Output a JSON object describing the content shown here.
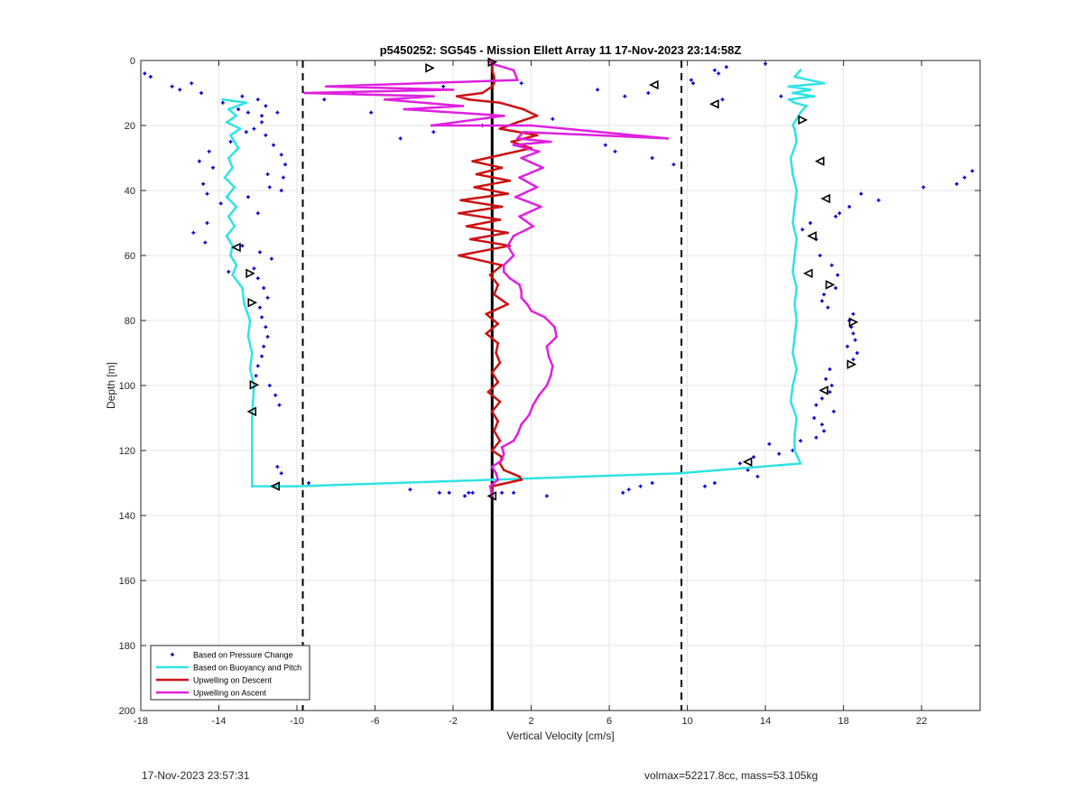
{
  "chart_data": {
    "type": "line",
    "title": "p5450252: SG545 - Mission Ellett Array 11 17-Nov-2023 23:14:58Z",
    "xlabel": "Vertical Velocity [cm/s]",
    "ylabel": "Depth [m]",
    "xlim": [
      -18,
      25
    ],
    "ylim": [
      0,
      200
    ],
    "y_reversed": true,
    "xticks": [
      -18,
      -14,
      -10,
      -6,
      -2,
      2,
      6,
      10,
      14,
      18,
      22
    ],
    "yticks": [
      0,
      20,
      40,
      60,
      80,
      100,
      120,
      140,
      160,
      180,
      200
    ],
    "grid": true,
    "legend_location": "bottom-left",
    "vertical_lines": [
      {
        "x": 0,
        "style": "solid",
        "color": "#000000"
      },
      {
        "x": -9.7,
        "style": "dashed",
        "color": "#000000"
      },
      {
        "x": 9.7,
        "style": "dashed",
        "color": "#000000"
      }
    ],
    "series": [
      {
        "name": "Based on Pressure Change",
        "kind": "scatter",
        "color": "#0000cc",
        "x": [
          -17.8,
          -17.5,
          -16.4,
          -16.0,
          -15.4,
          -14.9,
          -12.8,
          -12.0,
          -13.8,
          -13.0,
          -12.5,
          -11.8,
          -11.6,
          -11.0,
          -11.8,
          -12.6,
          -13.4,
          -14.5,
          -15.0,
          -14.3,
          -12.2,
          -11.6,
          -11.2,
          -10.8,
          -10.6,
          -11.5,
          -14.8,
          -14.6,
          -13.9,
          -12.5,
          -10.8,
          -11.4,
          -10.7,
          -12.0,
          -14.6,
          -15.3,
          -14.7,
          -12.8,
          -11.9,
          -11.3,
          -13.5,
          -12.2,
          -12.0,
          -11.7,
          -11.5,
          -11.9,
          -11.8,
          -11.6,
          -11.5,
          -11.7,
          -11.8,
          -12.0,
          -12.1,
          -11.4,
          -11.1,
          -10.9,
          -11.0,
          -10.8,
          -9.4,
          -4.2,
          -2.7,
          -2.2,
          -1.4,
          -1.2,
          -1.0,
          1.1,
          0.5,
          2.8,
          6.7,
          7.0,
          7.6,
          8.2,
          10.9,
          11.4,
          13.6,
          13.1,
          12.7,
          13.4,
          14.7,
          15.4,
          14.2,
          15.8,
          16.6,
          17.0,
          16.9,
          16.5,
          17.5,
          16.6,
          16.9,
          17.3,
          17.4,
          17.1,
          17.3,
          18.5,
          18.7,
          18.2,
          18.6,
          18.5,
          18.4,
          18.3,
          18.5,
          17.2,
          16.9,
          17.0,
          17.6,
          17.7,
          17.4,
          16.8,
          16.6,
          15.9,
          16.3,
          17.6,
          17.8,
          18.3,
          19.8,
          18.9,
          22.1,
          23.8,
          24.2,
          24.6,
          9.3,
          8.2,
          6.3,
          5.8,
          -4.7,
          -3.0,
          -0.5,
          3.1,
          -6.2,
          -8.6,
          -7.1,
          -3.9,
          -2.5,
          1.5,
          5.4,
          6.8,
          8.0,
          10.2,
          11.6,
          12.0,
          11.4,
          14.0,
          14.8,
          11.8,
          10.3
        ],
        "y": [
          4,
          5,
          8,
          9,
          7,
          10,
          11,
          12,
          13,
          15,
          16,
          17,
          14,
          16,
          19,
          22,
          25,
          28,
          31,
          33,
          21,
          23,
          26,
          29,
          32,
          35,
          38,
          41,
          44,
          42,
          40,
          39,
          36,
          47,
          50,
          53,
          56,
          57,
          59,
          61,
          65,
          64,
          67,
          70,
          73,
          76,
          79,
          82,
          85,
          88,
          91,
          94,
          97,
          100,
          103,
          106,
          125,
          127,
          130,
          132,
          133,
          133,
          134,
          133,
          133,
          133,
          133,
          134,
          133,
          132,
          131,
          130,
          131,
          130,
          128,
          126,
          124,
          122,
          121,
          120,
          118,
          117,
          116,
          114,
          112,
          110,
          108,
          106,
          104,
          102,
          100,
          98,
          95,
          92,
          90,
          88,
          86,
          84,
          82,
          80,
          78,
          76,
          74,
          72,
          70,
          66,
          63,
          60,
          55,
          52,
          50,
          48,
          47,
          45,
          43,
          41,
          39,
          38,
          36,
          34,
          32,
          30,
          28,
          26,
          24,
          22,
          20,
          18,
          16,
          12,
          10,
          9,
          8,
          7,
          9,
          11,
          10,
          6,
          4,
          2,
          3,
          1,
          11,
          12,
          7
        ]
      },
      {
        "name": "Based on Buoyancy and Pitch",
        "kind": "line",
        "color": "#30e3e3",
        "x": [
          -13.8,
          -12.6,
          -13.5,
          -13.1,
          -13.6,
          -12.9,
          -13.4,
          -13.2,
          -13.0,
          -13.5,
          -13.3,
          -13.7,
          -13.2,
          -13.6,
          -13.1,
          -13.5,
          -13.2,
          -13.6,
          -13.3,
          -13.4,
          -13.1,
          -13.3,
          -12.8,
          -12.7,
          -12.4,
          -12.5,
          -12.3,
          -12.4,
          -12.2,
          -12.3,
          -12.3,
          -10.0,
          0.0,
          9.6,
          15.8,
          15.5,
          15.5,
          15.6,
          15.3,
          15.4,
          15.6,
          15.4,
          15.5,
          15.6,
          15.5,
          15.6,
          15.4,
          15.5,
          15.6,
          15.4,
          15.5,
          15.6,
          15.4,
          15.3,
          15.6,
          15.5,
          15.4,
          15.5,
          15.6,
          15.7,
          15.8,
          16.1,
          15.5,
          15.2,
          16.5,
          15.4,
          16.3,
          15.2,
          17.0,
          15.5,
          15.8
        ],
        "y": [
          12,
          13,
          15,
          17,
          19,
          21,
          23,
          25,
          27,
          30,
          33,
          36,
          39,
          42,
          45,
          48,
          51,
          54,
          57,
          60,
          63,
          66,
          70,
          75,
          80,
          85,
          90,
          95,
          100,
          110,
          131,
          131,
          129,
          127,
          124,
          120,
          115,
          110,
          105,
          100,
          95,
          90,
          85,
          80,
          75,
          70,
          65,
          60,
          55,
          50,
          45,
          40,
          35,
          30,
          25,
          21,
          20,
          19,
          18,
          17,
          16,
          14,
          13,
          12,
          11,
          10,
          9,
          8,
          7,
          5,
          3
        ]
      },
      {
        "name": "Upwelling on Descent",
        "kind": "line",
        "color": "#cc1111",
        "x": [
          0.0,
          0.0,
          0.1,
          0.1,
          0.0,
          -0.5,
          -1.8,
          -1.2,
          0.4,
          1.6,
          2.3,
          1.3,
          0.4,
          2.3,
          1.0,
          2.0,
          0.5,
          -1.0,
          0.5,
          -0.8,
          0.9,
          -0.9,
          0.8,
          -1.6,
          0.5,
          -1.7,
          0.4,
          -1.3,
          0.8,
          -1.1,
          0.9,
          -1.7,
          0.5,
          -0.1,
          0.3,
          0.1,
          0.8,
          -0.3,
          0.3,
          -0.3,
          0.3,
          0.2,
          0.4,
          0.0,
          0.3,
          -0.2,
          0.4,
          0.0,
          0.3,
          0.1,
          0.4,
          0.0,
          0.5,
          0.4,
          0.6,
          1.4,
          1.5,
          0.0,
          0.0
        ],
        "y": [
          0,
          3,
          5,
          7,
          8,
          10,
          11,
          12,
          13,
          15,
          17,
          19,
          21,
          23,
          25,
          27,
          29,
          31,
          33,
          35,
          37,
          39,
          41,
          43,
          45,
          47,
          49,
          51,
          53,
          55,
          57,
          60,
          63,
          66,
          69,
          72,
          75,
          78,
          81,
          84,
          87,
          90,
          93,
          96,
          99,
          102,
          105,
          108,
          111,
          114,
          117,
          120,
          122,
          124,
          126,
          128,
          129,
          131,
          134
        ]
      },
      {
        "name": "Upwelling on Ascent",
        "kind": "line",
        "color": "#e020e0",
        "x": [
          0.0,
          -0.1,
          0.3,
          0.2,
          0.0,
          0.5,
          0.6,
          0.5,
          1.1,
          1.3,
          1.5,
          1.9,
          2.1,
          2.4,
          2.8,
          3.0,
          3.1,
          2.9,
          2.8,
          3.3,
          3.2,
          2.7,
          2.0,
          1.8,
          1.5,
          1.5,
          1.4,
          0.9,
          0.6,
          0.6,
          1.1,
          0.8,
          1.1,
          2.1,
          1.4,
          2.5,
          1.2,
          2.3,
          1.4,
          2.6,
          1.5,
          2.4,
          1.1,
          3.0,
          1.3,
          1.6,
          9.0,
          2.0,
          -3.1,
          0.6,
          -4.5,
          -1.5,
          -5.5,
          -3.0,
          -9.6,
          -2.0,
          -8.5,
          1.3,
          1.1,
          0.0,
          -0.2
        ],
        "y": [
          134,
          131,
          129,
          127,
          125,
          123,
          121,
          119,
          117,
          115,
          112,
          109,
          106,
          103,
          100,
          97,
          94,
          91,
          88,
          85,
          82,
          79,
          77,
          75,
          73,
          71,
          69,
          67,
          65,
          63,
          60,
          57,
          54,
          51,
          48,
          45,
          42,
          39,
          36,
          33,
          30,
          28,
          26,
          25,
          24,
          22,
          24,
          20,
          20,
          17,
          15,
          14,
          12,
          11,
          10,
          9,
          8,
          6,
          3,
          1,
          0
        ]
      }
    ],
    "markers": [
      {
        "x": 0.0,
        "y": 0.5,
        "dir": "right"
      },
      {
        "x": -3.2,
        "y": 2.3,
        "dir": "right"
      },
      {
        "x": 8.3,
        "y": 7.5,
        "dir": "left"
      },
      {
        "x": 11.4,
        "y": 13.4,
        "dir": "left"
      },
      {
        "x": 15.9,
        "y": 18.3,
        "dir": "right"
      },
      {
        "x": 16.8,
        "y": 31.0,
        "dir": "left"
      },
      {
        "x": 17.1,
        "y": 42.5,
        "dir": "left"
      },
      {
        "x": 16.4,
        "y": 54.0,
        "dir": "left"
      },
      {
        "x": -13.1,
        "y": 57.5,
        "dir": "left"
      },
      {
        "x": -12.4,
        "y": 65.5,
        "dir": "right"
      },
      {
        "x": 16.2,
        "y": 65.5,
        "dir": "left"
      },
      {
        "x": 17.3,
        "y": 69.0,
        "dir": "right"
      },
      {
        "x": -12.3,
        "y": 74.5,
        "dir": "right"
      },
      {
        "x": 18.5,
        "y": 80.5,
        "dir": "right"
      },
      {
        "x": 18.4,
        "y": 93.5,
        "dir": "right"
      },
      {
        "x": -12.2,
        "y": 99.8,
        "dir": "right"
      },
      {
        "x": 17.0,
        "y": 101.5,
        "dir": "left"
      },
      {
        "x": -12.3,
        "y": 108.0,
        "dir": "left"
      },
      {
        "x": 13.1,
        "y": 123.5,
        "dir": "left"
      },
      {
        "x": -11.1,
        "y": 131.0,
        "dir": "left"
      },
      {
        "x": 0.0,
        "y": 134.0,
        "dir": "left"
      }
    ]
  },
  "footer": {
    "timestamp": "17-Nov-2023 23:57:31",
    "info": "volmax=52217.8cc, mass=53.105kg"
  }
}
